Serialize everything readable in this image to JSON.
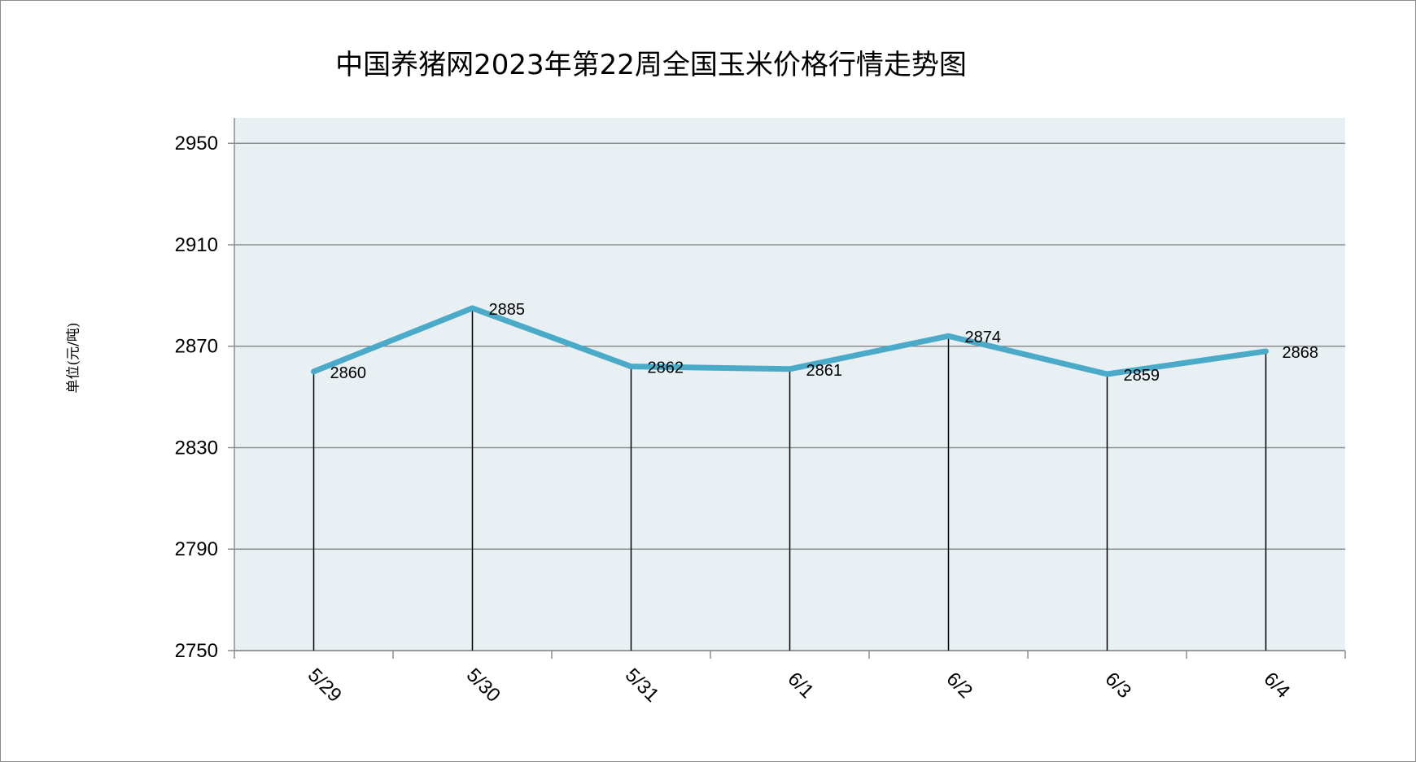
{
  "chart_data": {
    "type": "line",
    "title": "中国养猪网2023年第22周全国玉米价格行情走势图",
    "xlabel": "",
    "ylabel": "单位(元/吨)",
    "categories": [
      "5/29",
      "5/30",
      "5/31",
      "6/1",
      "6/2",
      "6/3",
      "6/4"
    ],
    "series": [
      {
        "values": [
          2860,
          2885,
          2862,
          2861,
          2874,
          2859,
          2868
        ]
      }
    ],
    "ylim": [
      2750,
      2960
    ],
    "yticks": [
      2750,
      2790,
      2830,
      2870,
      2910,
      2950
    ],
    "grid": true,
    "drop_lines": true,
    "colors": {
      "line": "#4aaac8",
      "plot_bg": "#e8f0f4",
      "grid": "#8c8c8c",
      "axis": "#8c8c8c",
      "drop_line": "#000000"
    }
  }
}
